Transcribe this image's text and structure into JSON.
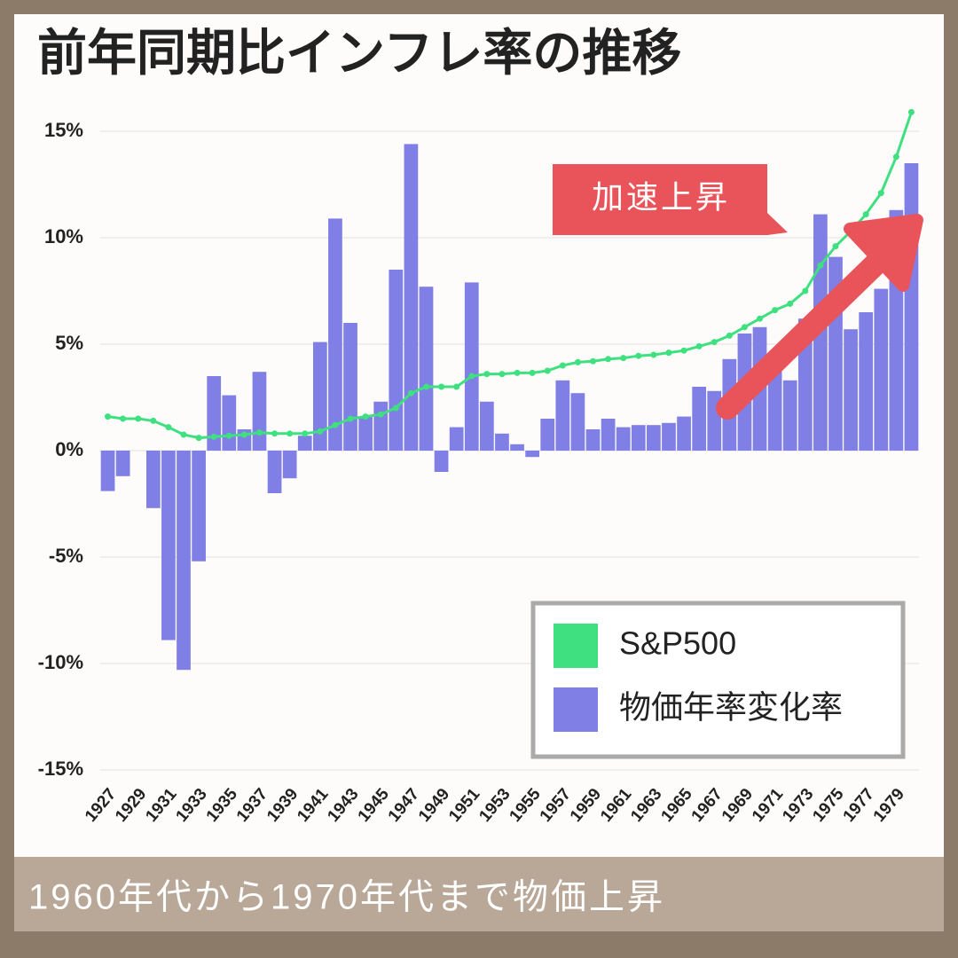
{
  "chart_data": {
    "type": "bar_line",
    "title": "前年同期比インフレ率の推移",
    "annotation": "加速上昇",
    "footer": "1960年代から1970年代まで物価上昇",
    "categories": [
      "1927",
      null,
      "1929",
      null,
      "1931",
      null,
      "1933",
      null,
      "1935",
      null,
      "1937",
      null,
      "1939",
      null,
      "1941",
      null,
      "1943",
      null,
      "1945",
      null,
      "1947",
      null,
      "1949",
      null,
      "1951",
      null,
      "1953",
      null,
      "1955",
      null,
      "1957",
      null,
      "1959",
      null,
      "1961",
      null,
      "1963",
      null,
      "1965",
      null,
      "1967",
      null,
      "1969",
      null,
      "1971",
      null,
      "1973",
      null,
      "1975",
      null,
      "1977",
      null,
      "1979",
      null
    ],
    "series": [
      {
        "name": "S&P500",
        "color": "#3ee07f",
        "kind": "line",
        "values": [
          1.6,
          1.5,
          1.5,
          1.4,
          1.1,
          0.75,
          0.6,
          0.65,
          0.7,
          0.75,
          0.85,
          0.8,
          0.8,
          0.8,
          0.9,
          1.2,
          1.5,
          1.6,
          1.7,
          2.0,
          2.7,
          3.0,
          3.0,
          3.0,
          3.5,
          3.6,
          3.6,
          3.65,
          3.65,
          3.75,
          4.0,
          4.15,
          4.2,
          4.3,
          4.35,
          4.45,
          4.5,
          4.6,
          4.7,
          4.9,
          5.1,
          5.4,
          5.8,
          6.2,
          6.6,
          6.9,
          7.5,
          8.7,
          9.6,
          10.3,
          11.1,
          12.1,
          13.8,
          15.9
        ]
      },
      {
        "name": "物価年率変化率",
        "color": "#7f7fe6",
        "kind": "bar",
        "values": [
          -1.9,
          -1.2,
          0,
          -2.7,
          -8.9,
          -10.3,
          -5.2,
          3.5,
          2.6,
          1.0,
          3.7,
          -2.0,
          -1.3,
          0.7,
          5.1,
          10.9,
          6.0,
          1.6,
          2.3,
          8.5,
          14.4,
          7.7,
          -1.0,
          1.1,
          7.9,
          2.3,
          0.8,
          0.3,
          -0.3,
          1.5,
          3.3,
          2.7,
          1.0,
          1.5,
          1.1,
          1.2,
          1.2,
          1.3,
          1.6,
          3.0,
          2.8,
          4.3,
          5.5,
          5.8,
          4.3,
          3.3,
          6.2,
          11.1,
          9.1,
          5.7,
          6.5,
          7.6,
          11.3,
          13.5
        ]
      }
    ],
    "ylim": [
      -15.5,
      16
    ],
    "yticks": [
      {
        "value": -15,
        "label": "-15%"
      },
      {
        "value": -10,
        "label": "-10%"
      },
      {
        "value": -5,
        "label": "-5%"
      },
      {
        "value": 0,
        "label": "0%"
      },
      {
        "value": 5,
        "label": "5%"
      },
      {
        "value": 10,
        "label": "10%"
      },
      {
        "value": 15,
        "label": "15%"
      }
    ],
    "grid": true
  }
}
